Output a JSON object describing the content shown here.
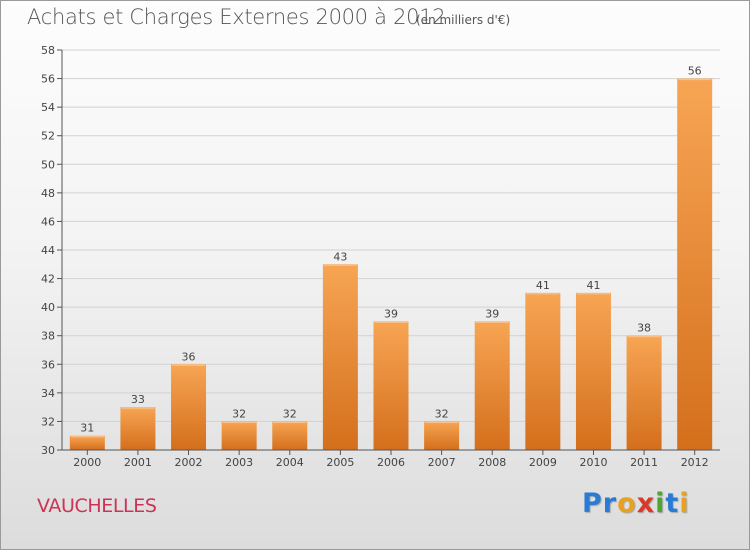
{
  "header": {
    "title": "Achats et Charges Externes 2000 à 2012",
    "subtitle": "(en milliers d'€)"
  },
  "footer": {
    "commune": "VAUCHELLES",
    "brand_letters": [
      {
        "ch": "P",
        "color": "#2a7bd4"
      },
      {
        "ch": "r",
        "color": "#2a7bd4"
      },
      {
        "ch": "o",
        "color": "#e8a020"
      },
      {
        "ch": "x",
        "color": "#d83a2a"
      },
      {
        "ch": "i",
        "color": "#4aa832"
      },
      {
        "ch": "t",
        "color": "#2a7bd4"
      },
      {
        "ch": "i",
        "color": "#e8a020"
      }
    ]
  },
  "chart_data": {
    "type": "bar",
    "title": "Achats et Charges Externes 2000 à 2012",
    "subtitle": "(en milliers d'€)",
    "categories": [
      "2000",
      "2001",
      "2002",
      "2003",
      "2004",
      "2005",
      "2006",
      "2007",
      "2008",
      "2009",
      "2010",
      "2011",
      "2012"
    ],
    "values": [
      31,
      33,
      36,
      32,
      32,
      43,
      39,
      32,
      39,
      41,
      41,
      38,
      56
    ],
    "ylim": [
      30,
      58
    ],
    "yticks": [
      30,
      32,
      34,
      36,
      38,
      40,
      42,
      44,
      46,
      48,
      50,
      52,
      54,
      56,
      58
    ],
    "grid": true,
    "data_labels": true,
    "bar_color_top": "#f7a554",
    "bar_color_bottom": "#d46f1c"
  }
}
